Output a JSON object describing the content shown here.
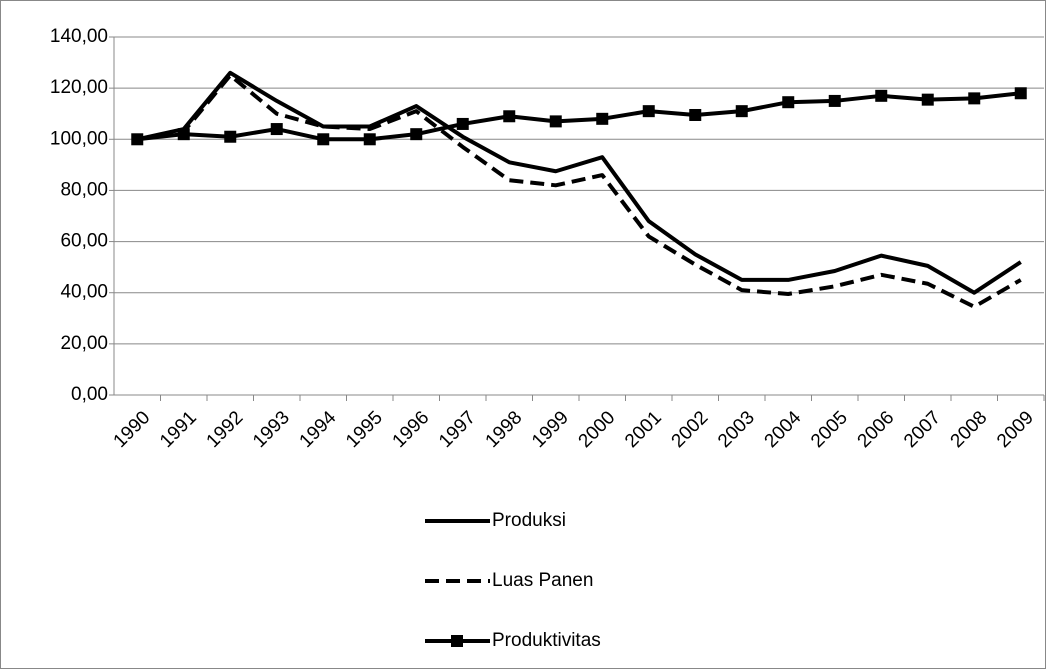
{
  "chart_data": {
    "type": "line",
    "categories": [
      "1990",
      "1991",
      "1992",
      "1993",
      "1994",
      "1995",
      "1996",
      "1997",
      "1998",
      "1999",
      "2000",
      "2001",
      "2002",
      "2003",
      "2004",
      "2005",
      "2006",
      "2007",
      "2008",
      "2009"
    ],
    "series": [
      {
        "name": "Produksi",
        "color": "#000000",
        "line_style": "solid",
        "marker": "none",
        "values": [
          100,
          104,
          126,
          115,
          105,
          105,
          113,
          101,
          91,
          87.5,
          93,
          68,
          55,
          45,
          45,
          48.5,
          54.5,
          50.5,
          40,
          52
        ]
      },
      {
        "name": "Luas Panen",
        "color": "#000000",
        "line_style": "dashed",
        "marker": "none",
        "values": [
          100,
          103,
          125,
          110,
          105,
          104,
          111,
          97,
          84,
          82,
          86,
          62,
          51,
          41,
          39.5,
          42.5,
          47,
          43.5,
          34.5,
          45
        ]
      },
      {
        "name": "Produktivitas",
        "color": "#000000",
        "line_style": "solid",
        "marker": "square",
        "values": [
          100,
          102,
          101,
          104,
          100,
          100,
          102,
          106,
          109,
          107,
          108,
          111,
          109.5,
          111,
          114.5,
          115,
          117,
          115.5,
          116,
          118
        ]
      }
    ],
    "ylim": [
      0,
      140
    ],
    "yticks": [
      {
        "value": 0,
        "label": "0,00"
      },
      {
        "value": 20,
        "label": "20,00"
      },
      {
        "value": 40,
        "label": "40,00"
      },
      {
        "value": 60,
        "label": "60,00"
      },
      {
        "value": 80,
        "label": "80,00"
      },
      {
        "value": 100,
        "label": "100,00"
      },
      {
        "value": 120,
        "label": "120,00"
      },
      {
        "value": 140,
        "label": "140,00"
      }
    ],
    "grid": true,
    "legend": "bottom"
  }
}
